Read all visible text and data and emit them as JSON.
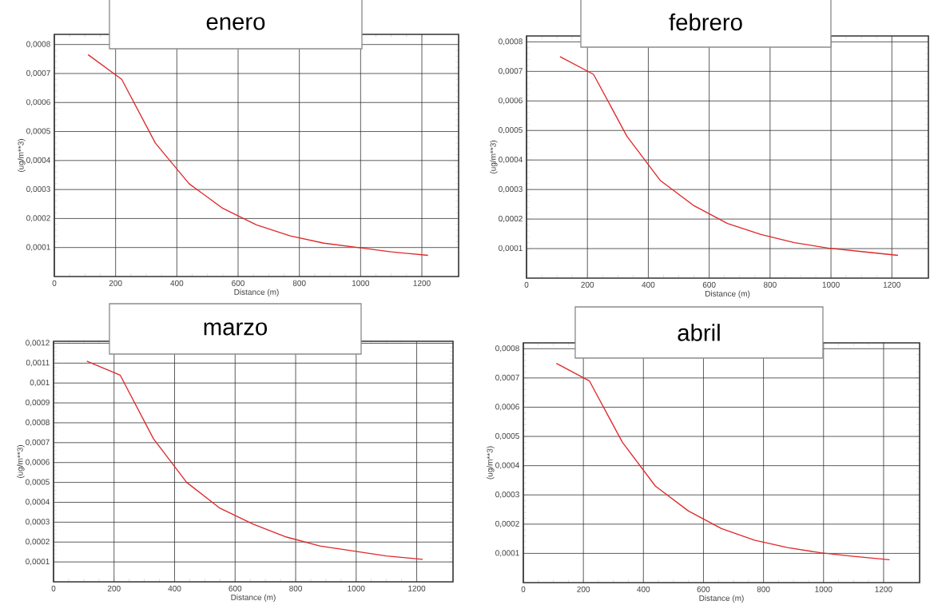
{
  "chart_data": [
    {
      "type": "line",
      "title": "enero",
      "xlabel": "Distance (m)",
      "ylabel": "(ug/m**3)",
      "x": [
        110,
        220,
        330,
        440,
        550,
        660,
        770,
        880,
        990,
        1100,
        1220
      ],
      "series": [
        {
          "color": "#e0282a",
          "values": [
            0.000765,
            0.00068,
            0.00046,
            0.00032,
            0.000235,
            0.000178,
            0.00014,
            0.000115,
            0.0001,
            8.5e-05,
            7.3e-05
          ]
        }
      ],
      "xlim": [
        0,
        1320
      ],
      "ylim": [
        0,
        0.000835
      ],
      "xticks": [
        0,
        200,
        400,
        600,
        800,
        1000,
        1200
      ],
      "yticks": [
        {
          "value": 0.0001,
          "label": "0,0001"
        },
        {
          "value": 0.0002,
          "label": "0,0002"
        },
        {
          "value": 0.0003,
          "label": "0,0003"
        },
        {
          "value": 0.0004,
          "label": "0,0004"
        },
        {
          "value": 0.0005,
          "label": "0,0005"
        },
        {
          "value": 0.0006,
          "label": "0,0006"
        },
        {
          "value": 0.0007,
          "label": "0,0007"
        },
        {
          "value": 0.0008,
          "label": "0,0008"
        }
      ],
      "grid": true
    },
    {
      "type": "line",
      "title": "febrero",
      "xlabel": "Distance (m)",
      "ylabel": "(ug/m**3)",
      "x": [
        110,
        220,
        330,
        440,
        550,
        660,
        770,
        880,
        990,
        1100,
        1220
      ],
      "series": [
        {
          "color": "#e0282a",
          "values": [
            0.00075,
            0.00069,
            0.00048,
            0.00033,
            0.000245,
            0.000185,
            0.000148,
            0.00012,
            0.000102,
            9e-05,
            7.7e-05
          ]
        }
      ],
      "xlim": [
        0,
        1320
      ],
      "ylim": [
        0,
        0.00082
      ],
      "xticks": [
        0,
        200,
        400,
        600,
        800,
        1000,
        1200
      ],
      "yticks": [
        {
          "value": 0.0001,
          "label": "0,0001"
        },
        {
          "value": 0.0002,
          "label": "0,0002"
        },
        {
          "value": 0.0003,
          "label": "0,0003"
        },
        {
          "value": 0.0004,
          "label": "0,0004"
        },
        {
          "value": 0.0005,
          "label": "0,0005"
        },
        {
          "value": 0.0006,
          "label": "0,0006"
        },
        {
          "value": 0.0007,
          "label": "0,0007"
        },
        {
          "value": 0.0008,
          "label": "0,0008"
        }
      ],
      "grid": true
    },
    {
      "type": "line",
      "title": "marzo",
      "xlabel": "Distance (m)",
      "ylabel": "(ug/m**3)",
      "x": [
        110,
        220,
        330,
        440,
        550,
        660,
        770,
        880,
        990,
        1100,
        1220
      ],
      "series": [
        {
          "color": "#e0282a",
          "values": [
            0.00111,
            0.00104,
            0.00072,
            0.0005,
            0.00037,
            0.00029,
            0.000225,
            0.00018,
            0.000155,
            0.00013,
            0.000113
          ]
        }
      ],
      "xlim": [
        0,
        1320
      ],
      "ylim": [
        0,
        0.00121
      ],
      "xticks": [
        0,
        200,
        400,
        600,
        800,
        1000,
        1200
      ],
      "yticks": [
        {
          "value": 0.0001,
          "label": "0,0001"
        },
        {
          "value": 0.0002,
          "label": "0,0002"
        },
        {
          "value": 0.0003,
          "label": "0,0003"
        },
        {
          "value": 0.0004,
          "label": "0,0004"
        },
        {
          "value": 0.0005,
          "label": "0,0005"
        },
        {
          "value": 0.0006,
          "label": "0,0006"
        },
        {
          "value": 0.0007,
          "label": "0,0007"
        },
        {
          "value": 0.0008,
          "label": "0,0008"
        },
        {
          "value": 0.0009,
          "label": "0,0009"
        },
        {
          "value": 0.001,
          "label": "0,001"
        },
        {
          "value": 0.0011,
          "label": "0,0011"
        },
        {
          "value": 0.0012,
          "label": "0,0012"
        }
      ],
      "grid": true
    },
    {
      "type": "line",
      "title": "abril",
      "xlabel": "Distance (m)",
      "ylabel": "(ug/m**3)",
      "x": [
        110,
        220,
        330,
        440,
        550,
        660,
        770,
        880,
        990,
        1100,
        1220
      ],
      "series": [
        {
          "color": "#e0282a",
          "values": [
            0.00075,
            0.00069,
            0.00048,
            0.00033,
            0.000245,
            0.000185,
            0.000145,
            0.00012,
            0.000102,
            9e-05,
            7.8e-05
          ]
        }
      ],
      "xlim": [
        0,
        1320
      ],
      "ylim": [
        0,
        0.00082
      ],
      "xticks": [
        0,
        200,
        400,
        600,
        800,
        1000,
        1200
      ],
      "yticks": [
        {
          "value": 0.0001,
          "label": "0,0001"
        },
        {
          "value": 0.0002,
          "label": "0,0002"
        },
        {
          "value": 0.0003,
          "label": "0,0003"
        },
        {
          "value": 0.0004,
          "label": "0,0004"
        },
        {
          "value": 0.0005,
          "label": "0,0005"
        },
        {
          "value": 0.0006,
          "label": "0,0006"
        },
        {
          "value": 0.0007,
          "label": "0,0007"
        },
        {
          "value": 0.0008,
          "label": "0,0008"
        }
      ],
      "grid": true
    }
  ]
}
